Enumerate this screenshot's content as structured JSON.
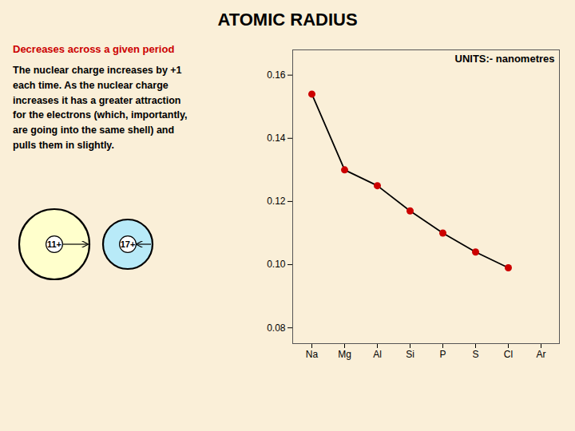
{
  "chart_data": {
    "type": "line",
    "title": "ATOMIC RADIUS",
    "subtitle": "Decreases across a given period",
    "annotations": [
      "The nuclear charge increases by +1\neach time. As the nuclear charge\nincreases it has a greater attraction\nfor the electrons (which, importantly,\nare going into the same shell) and\npulls them in slightly.",
      "UNITS:- nanometres",
      "11+",
      "17+"
    ],
    "categories": [
      "Na",
      "Mg",
      "Al",
      "Si",
      "P",
      "S",
      "Cl",
      "Ar"
    ],
    "values": [
      0.154,
      0.13,
      0.125,
      0.117,
      0.11,
      0.104,
      0.099,
      null
    ],
    "color": "#cc0000",
    "marker": "circle",
    "ylim": [
      0.075,
      0.168
    ],
    "yticks": [
      0.08,
      {
        "value": 0.1,
        "label": "0.10"
      },
      0.12,
      0.14,
      0.16
    ],
    "grid": false
  }
}
